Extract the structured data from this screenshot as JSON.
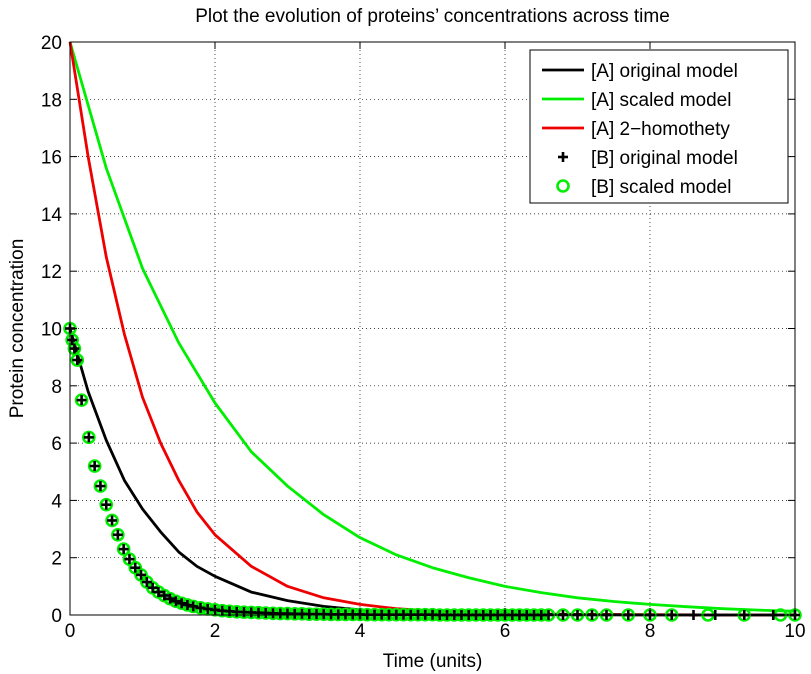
{
  "chart_data": {
    "type": "line",
    "title": "Plot the evolution of proteins’ concentrations across time",
    "xlabel": "Time (units)",
    "ylabel": "Protein concentration",
    "xlim": [
      0,
      10
    ],
    "ylim": [
      0,
      20
    ],
    "xticks": [
      0,
      2,
      4,
      6,
      8,
      10
    ],
    "yticks": [
      0,
      2,
      4,
      6,
      8,
      10,
      12,
      14,
      16,
      18,
      20
    ],
    "grid": "dotted",
    "legend_position": "top-right",
    "series": [
      {
        "name": "[A] original model",
        "color": "#000000",
        "style": "line",
        "x": [
          0,
          0.25,
          0.5,
          0.75,
          1,
          1.25,
          1.5,
          1.75,
          2,
          2.5,
          3,
          3.5,
          4,
          4.5,
          5,
          6,
          7,
          8,
          9,
          10
        ],
        "y": [
          10,
          7.8,
          6.1,
          4.7,
          3.7,
          2.9,
          2.2,
          1.7,
          1.35,
          0.8,
          0.5,
          0.3,
          0.18,
          0.11,
          0.07,
          0.02,
          0.01,
          0,
          0,
          0
        ]
      },
      {
        "name": "[A] scaled model",
        "color": "#00ee00",
        "style": "line",
        "x": [
          0,
          0.5,
          1,
          1.5,
          2,
          2.5,
          3,
          3.5,
          4,
          4.5,
          5,
          5.5,
          6,
          6.5,
          7,
          7.5,
          8,
          8.5,
          9,
          9.5,
          10
        ],
        "y": [
          20,
          15.6,
          12.1,
          9.5,
          7.4,
          5.7,
          4.5,
          3.5,
          2.7,
          2.1,
          1.65,
          1.3,
          1.0,
          0.78,
          0.6,
          0.47,
          0.37,
          0.29,
          0.22,
          0.17,
          0.13
        ]
      },
      {
        "name": "[A] 2−homothety",
        "color": "#ee0000",
        "style": "line",
        "x": [
          0,
          0.25,
          0.5,
          0.75,
          1,
          1.25,
          1.5,
          1.75,
          2,
          2.5,
          3,
          3.5,
          4,
          4.5,
          5,
          6,
          7,
          8,
          9,
          10
        ],
        "y": [
          20,
          16.0,
          12.5,
          9.8,
          7.6,
          6.0,
          4.7,
          3.6,
          2.8,
          1.7,
          1.0,
          0.6,
          0.37,
          0.22,
          0.14,
          0.05,
          0.02,
          0.01,
          0,
          0
        ]
      },
      {
        "name": "[B] original model",
        "color": "#000000",
        "style": "plus",
        "x": [
          0,
          0.03,
          0.06,
          0.1,
          0.16,
          0.26,
          0.34,
          0.42,
          0.5,
          0.58,
          0.66,
          0.74,
          0.82,
          0.9,
          0.98,
          1.06,
          1.14,
          1.22,
          1.3,
          1.38,
          1.46,
          1.54,
          1.62,
          1.7,
          1.8,
          1.9,
          2.0,
          2.1,
          2.2,
          2.3,
          2.4,
          2.5,
          2.6,
          2.7,
          2.8,
          2.9,
          3.0,
          3.1,
          3.2,
          3.3,
          3.4,
          3.5,
          3.6,
          3.7,
          3.8,
          3.9,
          4.0,
          4.1,
          4.2,
          4.3,
          4.4,
          4.5,
          4.6,
          4.7,
          4.8,
          4.9,
          5.0,
          5.1,
          5.2,
          5.3,
          5.4,
          5.5,
          5.6,
          5.7,
          5.8,
          5.9,
          6.0,
          6.1,
          6.2,
          6.3,
          6.4,
          6.5,
          6.6,
          6.8,
          7.0,
          7.2,
          7.4,
          7.7,
          8.0,
          8.3,
          8.6,
          8.9,
          9.3,
          9.7,
          10.0
        ],
        "y": [
          10,
          9.6,
          9.3,
          8.9,
          7.5,
          6.2,
          5.2,
          4.5,
          3.85,
          3.3,
          2.8,
          2.3,
          1.95,
          1.65,
          1.4,
          1.15,
          0.95,
          0.8,
          0.68,
          0.57,
          0.48,
          0.41,
          0.35,
          0.3,
          0.25,
          0.21,
          0.18,
          0.15,
          0.13,
          0.11,
          0.1,
          0.09,
          0.08,
          0.07,
          0.06,
          0.05,
          0.05,
          0.04,
          0.04,
          0.03,
          0.03,
          0.03,
          0.02,
          0.02,
          0.02,
          0.02,
          0.02,
          0.01,
          0.01,
          0.01,
          0.01,
          0.01,
          0.01,
          0.01,
          0.01,
          0.01,
          0.01,
          0,
          0,
          0,
          0,
          0,
          0,
          0,
          0,
          0,
          0,
          0,
          0,
          0,
          0,
          0,
          0,
          0,
          0,
          0,
          0,
          0,
          0,
          0,
          0,
          0,
          0,
          0,
          0
        ]
      },
      {
        "name": "[B] scaled model",
        "color": "#00ee00",
        "style": "circle",
        "x": [
          0,
          0.03,
          0.06,
          0.1,
          0.16,
          0.26,
          0.34,
          0.42,
          0.5,
          0.58,
          0.66,
          0.74,
          0.82,
          0.9,
          0.98,
          1.06,
          1.14,
          1.22,
          1.3,
          1.38,
          1.46,
          1.54,
          1.62,
          1.7,
          1.8,
          1.9,
          2.0,
          2.1,
          2.2,
          2.3,
          2.4,
          2.5,
          2.6,
          2.7,
          2.8,
          2.9,
          3.0,
          3.1,
          3.2,
          3.3,
          3.4,
          3.5,
          3.6,
          3.7,
          3.8,
          3.9,
          4.0,
          4.1,
          4.2,
          4.3,
          4.4,
          4.5,
          4.6,
          4.7,
          4.8,
          4.9,
          5.0,
          5.1,
          5.2,
          5.3,
          5.4,
          5.5,
          5.6,
          5.7,
          5.8,
          5.9,
          6.0,
          6.1,
          6.2,
          6.3,
          6.4,
          6.5,
          6.6,
          6.8,
          7.0,
          7.2,
          7.4,
          7.7,
          8.0,
          8.3,
          8.8,
          9.3,
          9.8,
          10.0
        ],
        "y": [
          10,
          9.6,
          9.3,
          8.9,
          7.5,
          6.2,
          5.2,
          4.5,
          3.85,
          3.3,
          2.8,
          2.3,
          1.95,
          1.65,
          1.4,
          1.15,
          0.95,
          0.8,
          0.68,
          0.57,
          0.48,
          0.41,
          0.35,
          0.3,
          0.25,
          0.21,
          0.18,
          0.15,
          0.13,
          0.11,
          0.1,
          0.09,
          0.08,
          0.07,
          0.06,
          0.05,
          0.05,
          0.04,
          0.04,
          0.03,
          0.03,
          0.03,
          0.02,
          0.02,
          0.02,
          0.02,
          0.02,
          0.01,
          0.01,
          0.01,
          0.01,
          0.01,
          0.01,
          0.01,
          0.01,
          0.01,
          0.01,
          0,
          0,
          0,
          0,
          0,
          0,
          0,
          0,
          0,
          0,
          0,
          0,
          0,
          0,
          0,
          0,
          0,
          0,
          0,
          0,
          0,
          0,
          0,
          0,
          0,
          0,
          0
        ]
      }
    ]
  }
}
